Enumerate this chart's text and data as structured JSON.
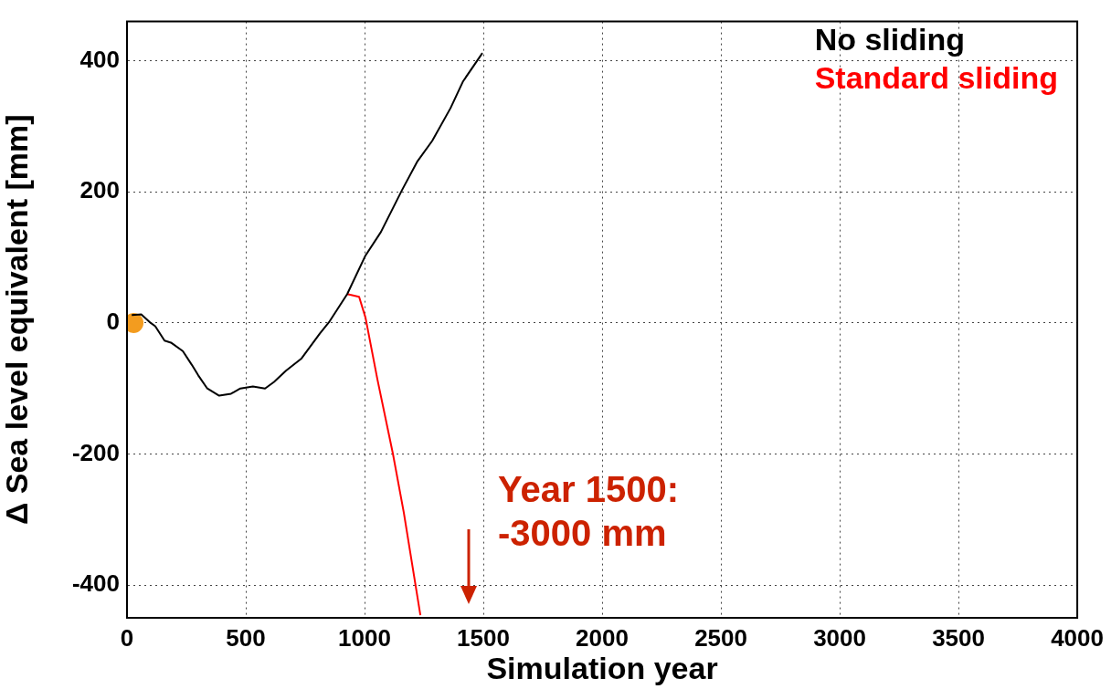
{
  "chart_data": {
    "type": "line",
    "xlabel": "Simulation year",
    "ylabel": "Δ Sea level equivalent [mm]",
    "xlim": [
      0,
      4000
    ],
    "xticks": [
      0,
      500,
      1000,
      1500,
      2000,
      2500,
      3000,
      3500,
      4000
    ],
    "ylim": [
      -450,
      460
    ],
    "yticks": [
      -400,
      -200,
      0,
      200,
      400
    ],
    "grid": true,
    "legend": "top right",
    "marker": "none",
    "annotations": [
      "Year 1500:\n-3000 mm"
    ],
    "series": [
      {
        "name": "No sliding",
        "color": "#000000",
        "x": [
          20,
          60,
          100,
          119,
          158,
          185,
          235,
          273,
          300,
          338,
          388,
          438,
          477,
          530,
          581,
          619,
          669,
          735,
          812,
          850,
          927,
          1004,
          1069,
          1158,
          1223,
          1285,
          1362,
          1415,
          1496
        ],
        "values": [
          12,
          13,
          0,
          -5,
          -27,
          -30,
          -43,
          -64,
          -80,
          -100,
          -111,
          -108,
          -100,
          -97,
          -100,
          -90,
          -73,
          -54,
          -16,
          1,
          44,
          103,
          139,
          203,
          247,
          278,
          328,
          369,
          412
        ]
      },
      {
        "name": "Standard sliding",
        "color": "#ff0000",
        "x": [
          927,
          977,
          1004,
          1054,
          1119,
          1165,
          1235
        ],
        "values": [
          44,
          40,
          8,
          -86,
          -199,
          -289,
          -446
        ]
      },
      {
        "type": "scatter",
        "color": "#f39c1f",
        "marker": "circle",
        "x": [
          27
        ],
        "values": [
          0
        ]
      }
    ]
  }
}
